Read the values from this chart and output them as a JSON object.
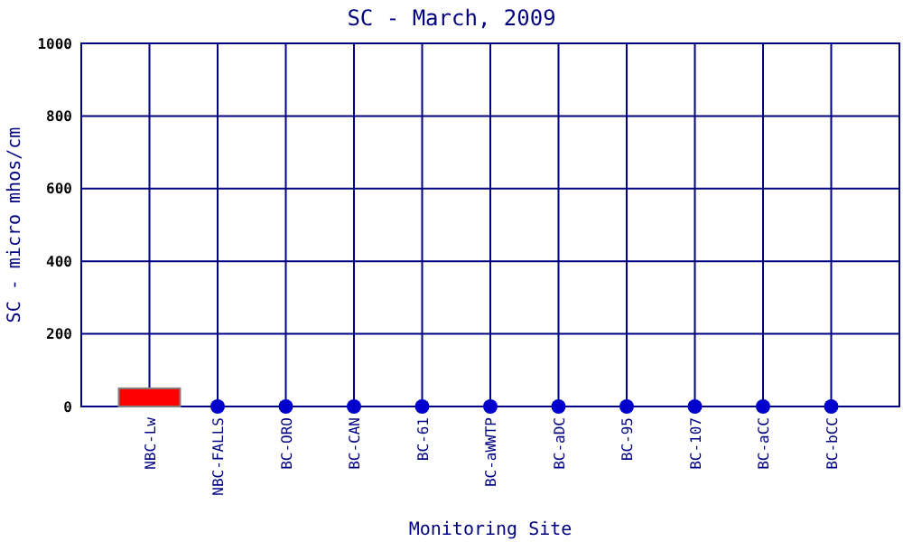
{
  "chart_data": {
    "type": "bar",
    "title": "SC - March, 2009",
    "xlabel": "Monitoring Site",
    "ylabel": "SC - micro mhos/cm",
    "categories": [
      "NBC-Lw",
      "NBC-FALLS",
      "BC-ORO",
      "BC-CAN",
      "BC-61",
      "BC-aWWTP",
      "BC-aDC",
      "BC-95",
      "BC-107",
      "BC-aCC",
      "BC-bCC"
    ],
    "series": [
      {
        "color": "#ff0000",
        "values": [
          50,
          null,
          null,
          null,
          null,
          null,
          null,
          null,
          null,
          null,
          null
        ]
      },
      {
        "type": "scatter",
        "color": "#0000cc",
        "x": [
          "NBC-FALLS",
          "BC-ORO",
          "BC-CAN",
          "BC-61",
          "BC-aWWTP",
          "BC-aDC",
          "BC-95",
          "BC-107",
          "BC-aCC",
          "BC-bCC"
        ],
        "values": [
          0,
          0,
          0,
          0,
          0,
          0,
          0,
          0,
          0,
          0
        ]
      }
    ],
    "ylim": [
      0,
      1000
    ],
    "yticks": [
      0,
      200,
      400,
      600,
      800,
      1000
    ],
    "grid": true,
    "marker": "circle"
  }
}
